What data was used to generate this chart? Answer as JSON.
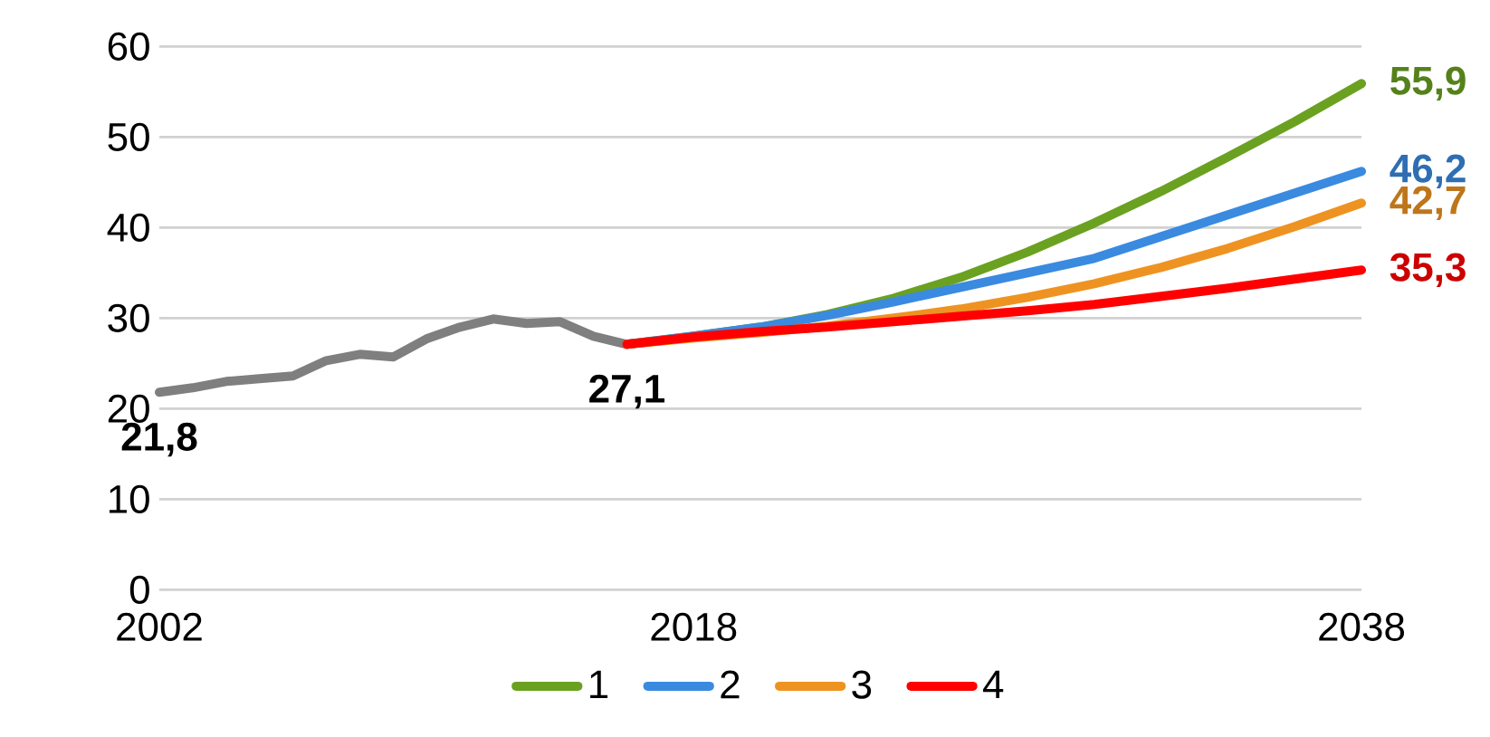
{
  "chart_data": {
    "type": "line",
    "xlim": [
      2002,
      2038
    ],
    "xticks": [
      2002,
      2018,
      2038
    ],
    "ylim": [
      0,
      60
    ],
    "yticks": [
      0,
      10,
      20,
      30,
      40,
      50,
      60
    ],
    "grid": "y",
    "legend": "bottom",
    "marker": "none",
    "line_style": "solid",
    "series": [
      {
        "color": "#7f7f7f",
        "x": [
          2002,
          2003,
          2004,
          2005,
          2006,
          2007,
          2008,
          2009,
          2010,
          2011,
          2012,
          2013,
          2014,
          2015,
          2016
        ],
        "values": [
          21.8,
          22.3,
          23.0,
          23.3,
          23.6,
          25.3,
          26.0,
          25.7,
          27.7,
          29.0,
          29.9,
          29.4,
          29.6,
          28.0,
          27.1
        ]
      },
      {
        "name": "1",
        "color": "#6aa121",
        "x": [
          2016,
          2018,
          2020,
          2022,
          2024,
          2026,
          2028,
          2030,
          2032,
          2034,
          2036,
          2038
        ],
        "values": [
          27.1,
          28.0,
          29.0,
          30.4,
          32.2,
          34.5,
          37.3,
          40.5,
          44.0,
          47.8,
          51.7,
          55.9
        ]
      },
      {
        "name": "2",
        "color": "#3a8ae0",
        "x": [
          2016,
          2018,
          2020,
          2022,
          2024,
          2026,
          2028,
          2030,
          2032,
          2034,
          2036,
          2038
        ],
        "values": [
          27.1,
          28.0,
          29.0,
          30.3,
          31.8,
          33.4,
          35.0,
          36.6,
          39.0,
          41.4,
          43.8,
          46.2
        ]
      },
      {
        "name": "3",
        "color": "#ee9321",
        "x": [
          2016,
          2018,
          2020,
          2022,
          2024,
          2026,
          2028,
          2030,
          2032,
          2034,
          2036,
          2038
        ],
        "values": [
          27.1,
          27.8,
          28.4,
          29.1,
          30.0,
          31.0,
          32.3,
          33.8,
          35.6,
          37.7,
          40.1,
          42.7
        ]
      },
      {
        "name": "4",
        "color": "#ff0000",
        "x": [
          2016,
          2018,
          2020,
          2022,
          2024,
          2026,
          2028,
          2030,
          2032,
          2034,
          2036,
          2038
        ],
        "values": [
          27.1,
          27.9,
          28.5,
          29.0,
          29.6,
          30.2,
          30.8,
          31.5,
          32.4,
          33.3,
          34.3,
          35.3
        ]
      }
    ],
    "annotations": [
      {
        "text": "21,8",
        "x": 2002,
        "y": 21.8
      },
      {
        "text": "27,1",
        "x": 2016,
        "y": 27.1
      },
      {
        "text": "55,9",
        "x": 2038,
        "y": 55.9
      },
      {
        "text": "46,2",
        "x": 2038,
        "y": 46.2
      },
      {
        "text": "42,7",
        "x": 2038,
        "y": 42.7
      },
      {
        "text": "35,3",
        "x": 2038,
        "y": 35.3
      }
    ]
  }
}
